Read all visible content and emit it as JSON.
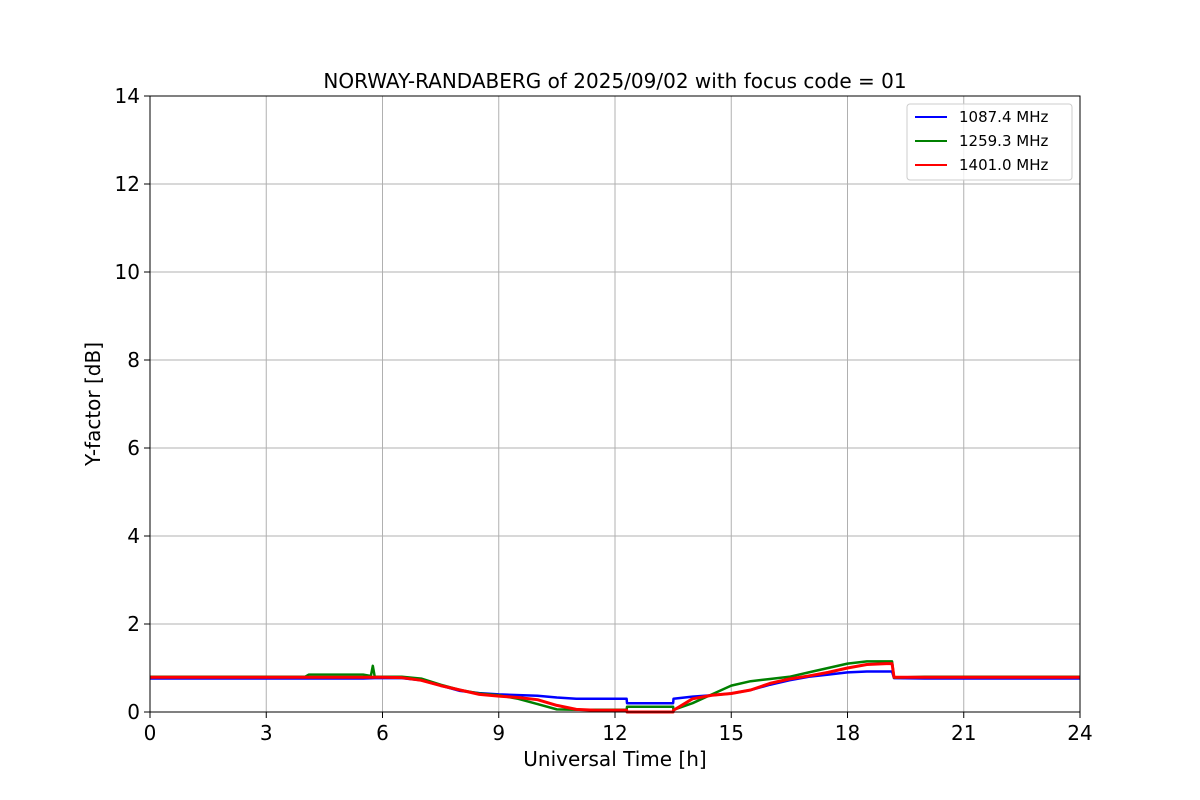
{
  "chart_data": {
    "type": "line",
    "title": "NORWAY-RANDABERG of 2025/09/02 with focus code = 01",
    "xlabel": "Universal Time [h]",
    "ylabel": "Y-factor [dB]",
    "xlim": [
      0,
      24
    ],
    "ylim": [
      0,
      14
    ],
    "xticks": [
      0,
      3,
      6,
      9,
      12,
      15,
      18,
      21,
      24
    ],
    "yticks": [
      0,
      2,
      4,
      6,
      8,
      10,
      12,
      14
    ],
    "xtick_labels": [
      "0",
      "3",
      "6",
      "9",
      "12",
      "15",
      "18",
      "21",
      "24"
    ],
    "ytick_labels": [
      "0",
      "2",
      "4",
      "6",
      "8",
      "10",
      "12",
      "14"
    ],
    "grid": true,
    "legend_position": "top-right",
    "series": [
      {
        "name": "1087.4 MHz",
        "color": "#0000ff",
        "x": [
          0,
          4,
          5.5,
          5.8,
          6.5,
          7,
          7.5,
          8,
          8.5,
          9,
          10,
          10.5,
          11,
          11.5,
          12,
          12.3,
          12.31,
          13.5,
          13.51,
          14,
          14.5,
          15,
          15.5,
          16,
          16.5,
          17,
          17.5,
          18,
          18.5,
          19,
          19.15,
          19.2,
          20,
          21,
          22,
          23,
          24
        ],
        "values": [
          0.76,
          0.76,
          0.76,
          0.77,
          0.77,
          0.72,
          0.6,
          0.48,
          0.43,
          0.4,
          0.37,
          0.33,
          0.3,
          0.3,
          0.3,
          0.3,
          0.2,
          0.2,
          0.3,
          0.35,
          0.38,
          0.42,
          0.5,
          0.62,
          0.72,
          0.8,
          0.85,
          0.9,
          0.92,
          0.92,
          0.92,
          0.77,
          0.76,
          0.76,
          0.76,
          0.76,
          0.76
        ]
      },
      {
        "name": "1259.3 MHz",
        "color": "#008000",
        "x": [
          0,
          4,
          4.1,
          5,
          5.5,
          5.7,
          5.75,
          5.8,
          6.5,
          7,
          7.5,
          8,
          8.5,
          9,
          9.5,
          10,
          10.5,
          11,
          11.5,
          12,
          12.3,
          12.31,
          13.5,
          13.51,
          14,
          14.5,
          15,
          15.5,
          16,
          16.5,
          17,
          17.5,
          18,
          18.5,
          19,
          19.15,
          19.2,
          20,
          21,
          22,
          23,
          24
        ],
        "values": [
          0.8,
          0.8,
          0.85,
          0.85,
          0.85,
          0.82,
          1.05,
          0.8,
          0.8,
          0.76,
          0.62,
          0.5,
          0.42,
          0.38,
          0.3,
          0.18,
          0.06,
          0.05,
          0.05,
          0.05,
          0.05,
          0.12,
          0.12,
          0.05,
          0.2,
          0.4,
          0.6,
          0.7,
          0.75,
          0.8,
          0.9,
          1.0,
          1.1,
          1.15,
          1.15,
          1.15,
          0.78,
          0.8,
          0.8,
          0.8,
          0.8,
          0.8
        ]
      },
      {
        "name": "1401.0 MHz",
        "color": "#ff0000",
        "x": [
          0,
          4,
          5.5,
          6,
          6.5,
          7,
          7.5,
          8,
          8.5,
          9,
          9.5,
          10,
          10.5,
          11,
          11.5,
          12,
          12.3,
          12.31,
          13.5,
          13.51,
          14,
          14.5,
          15,
          15.5,
          16,
          16.5,
          17,
          17.5,
          18,
          18.5,
          19,
          19.15,
          19.2,
          20,
          21,
          22,
          23,
          24
        ],
        "values": [
          0.79,
          0.79,
          0.79,
          0.79,
          0.78,
          0.72,
          0.6,
          0.5,
          0.4,
          0.36,
          0.33,
          0.28,
          0.15,
          0.06,
          0.04,
          0.04,
          0.04,
          0.0,
          0.0,
          0.04,
          0.3,
          0.38,
          0.42,
          0.5,
          0.65,
          0.75,
          0.82,
          0.9,
          1.0,
          1.08,
          1.1,
          1.1,
          0.79,
          0.79,
          0.79,
          0.79,
          0.79,
          0.79
        ]
      }
    ]
  }
}
